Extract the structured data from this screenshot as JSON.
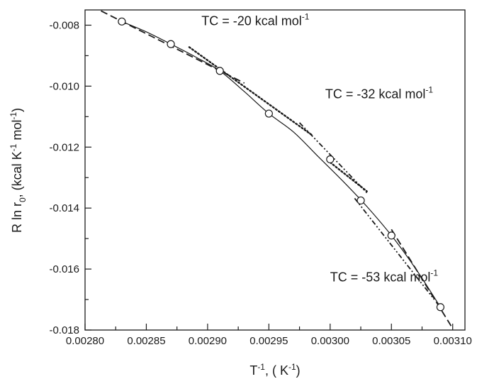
{
  "chart_data": {
    "type": "scatter",
    "title": "",
    "xlabel": {
      "base": "T",
      "sup": "-1",
      "rest": ", ( K",
      "unit_sup": "-1",
      "close": ")"
    },
    "ylabel": {
      "pre": "R ln r",
      "sub": "0",
      "mid": ", (kcal K",
      "sup1": "-1",
      "mid2": " mol",
      "sup2": "-1",
      "close": ")"
    },
    "xlim": [
      0.0028,
      0.00311
    ],
    "ylim": [
      -0.018,
      -0.0075
    ],
    "x_major_ticks": [
      0.0028,
      0.00285,
      0.0029,
      0.00295,
      0.003,
      0.00305,
      0.0031
    ],
    "x_tick_labels": [
      "0.00280",
      "0.00285",
      "0.00290",
      "0.00295",
      "0.00300",
      "0.00305",
      "0.00310"
    ],
    "y_major_ticks": [
      -0.008,
      -0.01,
      -0.012,
      -0.014,
      -0.016,
      -0.018
    ],
    "y_tick_labels": [
      "-0.008",
      "-0.010",
      "-0.012",
      "-0.014",
      "-0.016",
      "-0.018"
    ],
    "grid": false,
    "points": {
      "x": [
        0.00283,
        0.00287,
        0.00291,
        0.00295,
        0.003,
        0.003025,
        0.00305,
        0.00309
      ],
      "y": [
        -0.00788,
        -0.00862,
        -0.0095,
        -0.0109,
        -0.0124,
        -0.01375,
        -0.0149,
        -0.01725
      ]
    },
    "fit_curve": {
      "x": [
        0.00283,
        0.00285,
        0.00287,
        0.00289,
        0.00291,
        0.00293,
        0.00295,
        0.00297,
        0.00299,
        0.00301,
        0.00303,
        0.00305,
        0.00307,
        0.00309
      ],
      "y": [
        -0.00788,
        -0.00822,
        -0.00862,
        -0.00904,
        -0.0095,
        -0.01018,
        -0.0109,
        -0.0115,
        -0.0123,
        -0.0131,
        -0.01395,
        -0.0149,
        -0.016,
        -0.01725
      ]
    },
    "tangent_lines": [
      {
        "style": "dash",
        "x": [
          0.002813,
          0.00293
        ],
        "y": [
          -0.00753,
          -0.0099
        ]
      },
      {
        "style": "dot",
        "x": [
          0.002885,
          0.002985
        ],
        "y": [
          -0.00872,
          -0.0116
        ]
      },
      {
        "style": "dash-dot-dot",
        "x": [
          0.002975,
          0.00303
        ],
        "y": [
          -0.0112,
          -0.0135
        ]
      },
      {
        "style": "dot",
        "x": [
          0.003,
          0.00303
        ],
        "y": [
          -0.0125,
          -0.01345
        ]
      },
      {
        "style": "dash-dot-dot",
        "x": [
          0.00302,
          0.003085
        ],
        "y": [
          -0.01368,
          -0.017
        ]
      },
      {
        "style": "dash",
        "x": [
          0.00305,
          0.0031
        ],
        "y": [
          -0.0147,
          -0.01795
        ]
      }
    ],
    "annotations": [
      {
        "text": "TC = -20 kcal mol",
        "sup": "-1",
        "x": 0.002895,
        "y": -0.008
      },
      {
        "text": "TC = -32 kcal mol",
        "sup": "-1",
        "x": 0.002996,
        "y": -0.0104
      },
      {
        "text": "TC = -53 kcal mol",
        "sup": "-1",
        "x": 0.003,
        "y": -0.0164
      }
    ]
  }
}
